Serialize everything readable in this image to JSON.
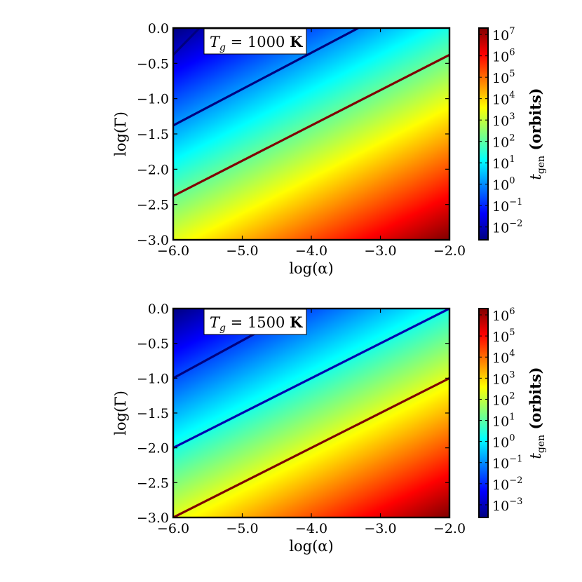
{
  "figure": {
    "colormap_stops": [
      "#00007f",
      "#0000ff",
      "#007fff",
      "#00ffff",
      "#7fff7f",
      "#ffff00",
      "#ff7f00",
      "#ff0000",
      "#7f0000"
    ]
  },
  "chart_data": [
    {
      "type": "heatmap",
      "xlabel": "log(α)",
      "ylabel": "log(Γ)",
      "x_ticks": [
        "−6.0",
        "−5.0",
        "−4.0",
        "−3.0",
        "−2.0"
      ],
      "y_ticks": [
        "0.0",
        "−0.5",
        "−1.0",
        "−1.5",
        "−2.0",
        "−2.5",
        "−3.0"
      ],
      "xlim": [
        -6.0,
        -2.0
      ],
      "ylim": [
        -3.0,
        0.0
      ],
      "annotation": {
        "var": "T",
        "sub": "g",
        "rest": " = 1000 ",
        "unit": "K"
      },
      "colorbar": {
        "label": "t",
        "label_sub": "gen",
        "label_rest": " (orbits)",
        "log_range": [
          -2.6,
          7.3
        ],
        "ticks": [
          "10^-2",
          "10^-1",
          "10^0",
          "10^1",
          "10^2",
          "10^3",
          "10^4",
          "10^5",
          "10^6",
          "10^7"
        ]
      },
      "field": "log10(t_gen) increases with log(α) and decreases with log(Γ)",
      "contours": [
        {
          "color": "#00007f",
          "points": [
            [
              -6.0,
              -0.38
            ],
            [
              -5.62,
              0.0
            ]
          ]
        },
        {
          "color": "#00007f",
          "points": [
            [
              -6.0,
              -1.38
            ],
            [
              -3.32,
              0.0
            ]
          ]
        },
        {
          "color": "#7f0000",
          "points": [
            [
              -6.0,
              -2.38
            ],
            [
              -2.0,
              -0.38
            ]
          ]
        }
      ]
    },
    {
      "type": "heatmap",
      "xlabel": "log(α)",
      "ylabel": "log(Γ)",
      "x_ticks": [
        "−6.0",
        "−5.0",
        "−4.0",
        "−3.0",
        "−2.0"
      ],
      "y_ticks": [
        "0.0",
        "−0.5",
        "−1.0",
        "−1.5",
        "−2.0",
        "−2.5",
        "−3.0"
      ],
      "xlim": [
        -6.0,
        -2.0
      ],
      "ylim": [
        -3.0,
        0.0
      ],
      "annotation": {
        "var": "T",
        "sub": "g",
        "rest": " = 1500 ",
        "unit": "K"
      },
      "colorbar": {
        "label": "t",
        "label_sub": "gen",
        "label_rest": " (orbits)",
        "log_range": [
          -3.6,
          6.3
        ],
        "ticks": [
          "10^-3",
          "10^-2",
          "10^-1",
          "10^0",
          "10^1",
          "10^2",
          "10^3",
          "10^4",
          "10^5",
          "10^6"
        ]
      },
      "field": "log10(t_gen) increases with log(α) and decreases with log(Γ)",
      "contours": [
        {
          "color": "#00007f",
          "points": [
            [
              -6.0,
              -1.0
            ],
            [
              -4.15,
              0.0
            ]
          ]
        },
        {
          "color": "#0000b0",
          "points": [
            [
              -6.0,
              -2.0
            ],
            [
              -2.0,
              0.0
            ]
          ]
        },
        {
          "color": "#7f0000",
          "points": [
            [
              -6.0,
              -3.0
            ],
            [
              -2.0,
              -1.0
            ]
          ]
        }
      ]
    }
  ]
}
